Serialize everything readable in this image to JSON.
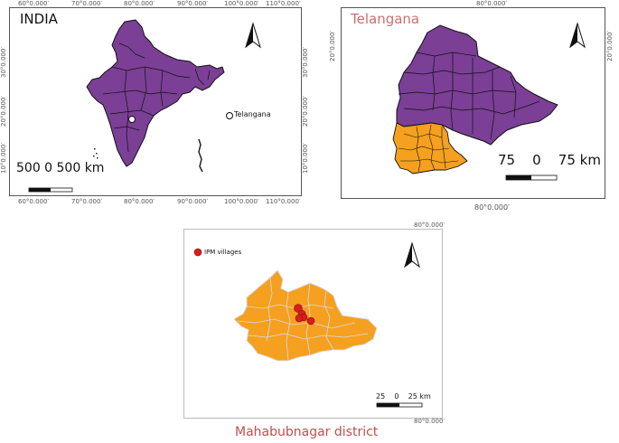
{
  "india_map": {
    "title": "INDIA",
    "legend_label": "Telangana",
    "scale_text": "500 0 500 km",
    "lon_ticks": [
      "60°0.000′",
      "70°0.000′",
      "80°0.000′",
      "90°0.000′",
      "100°0.000′",
      "110°0.000′"
    ],
    "lat_ticks": [
      "30°0.000′",
      "20°0.000′",
      "10°0.000′"
    ],
    "fill_color": "#7b3f96",
    "marker_color": "#ffffff",
    "north_arrow": "north-arrow-icon"
  },
  "telangana_map": {
    "title": "Telangana",
    "title_color": "#c87070",
    "lon_tick": "80°0.000′",
    "lat_tick": "20°0.000′",
    "scale_text": "75    0    75 km",
    "state_color": "#7b3f96",
    "district_color": "#f5a01e",
    "north_arrow": "north-arrow-icon"
  },
  "district_map": {
    "legend_label": "IPM villages",
    "lon_tick": "80°0.000′",
    "scale_text": "25    0    25 km",
    "district_color": "#f5a01e",
    "village_color": "#d81e1e",
    "caption": "Mahabubnagar district",
    "caption_color": "#c0504d",
    "north_arrow": "north-arrow-icon"
  }
}
